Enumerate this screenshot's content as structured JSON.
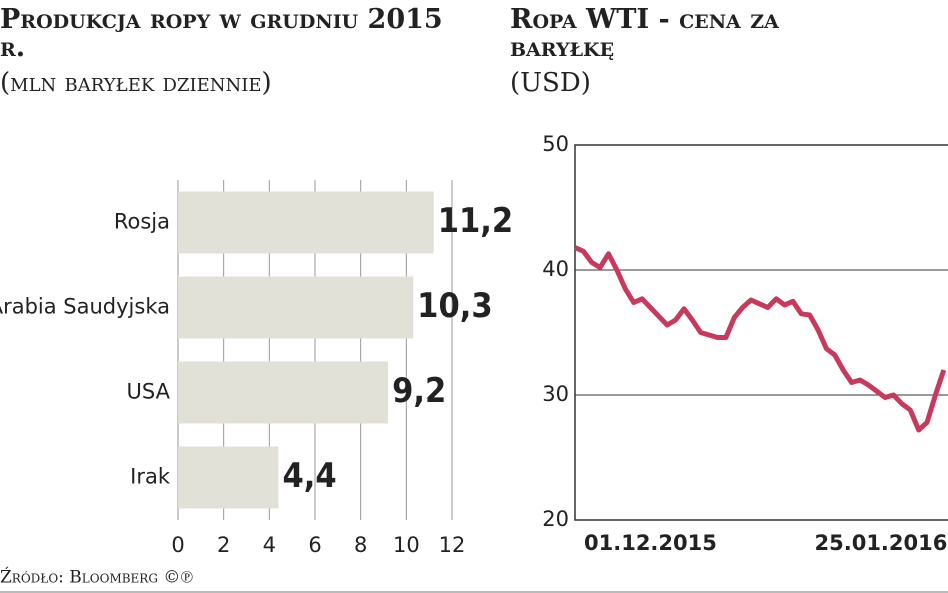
{
  "chart_data": [
    {
      "type": "bar",
      "orientation": "horizontal",
      "title": "Produkcja ropy w grudniu 2015 r.",
      "subtitle": "(mln baryłek dziennie)",
      "categories": [
        "Rosja",
        "Arabia Saudyjska",
        "USA",
        "Irak"
      ],
      "values": [
        11.2,
        10.3,
        9.2,
        4.4
      ],
      "value_labels": [
        "11,2",
        "10,3",
        "9,2",
        "4,4"
      ],
      "color": "#e2e1d8",
      "xlim": [
        0,
        12
      ],
      "xticks": [
        0,
        2,
        4,
        6,
        8,
        10,
        12
      ],
      "grid": true,
      "source": "Źródło: Bloomberg ©℗"
    },
    {
      "type": "line",
      "title": "Ropa WTI - cena za baryłkę",
      "subtitle": "(USD)",
      "x": [
        "2015-11-13",
        "2015-11-15",
        "2015-11-17",
        "2015-11-19",
        "2015-11-21",
        "2015-11-23",
        "2015-11-25",
        "2015-11-27",
        "2015-11-29",
        "2015-12-01",
        "2015-12-03",
        "2015-12-05",
        "2015-12-07",
        "2015-12-09",
        "2015-12-11",
        "2015-12-13",
        "2015-12-15",
        "2015-12-17",
        "2015-12-19",
        "2015-12-21",
        "2015-12-23",
        "2015-12-25",
        "2015-12-27",
        "2015-12-29",
        "2015-12-31",
        "2016-01-02",
        "2016-01-04",
        "2016-01-06",
        "2016-01-08",
        "2016-01-10",
        "2016-01-12",
        "2016-01-14",
        "2016-01-16",
        "2016-01-18",
        "2016-01-20",
        "2016-01-22",
        "2016-01-24",
        "2016-01-26",
        "2016-01-28",
        "2016-01-30",
        "2016-02-01",
        "2016-02-03",
        "2016-02-05",
        "2016-02-07",
        "2016-02-09"
      ],
      "series": [
        {
          "name": "WTI",
          "color": "#c83a5c",
          "values": [
            41.8,
            41.5,
            40.6,
            40.2,
            41.3,
            40,
            38.5,
            37.4,
            37.7,
            37,
            36.3,
            35.6,
            36,
            36.9,
            36,
            35,
            34.8,
            34.6,
            34.6,
            36.2,
            37,
            37.6,
            37.3,
            37,
            37.7,
            37.2,
            37.5,
            36.5,
            36.4,
            35.2,
            33.7,
            33.2,
            32,
            31,
            31.2,
            30.8,
            30.3,
            29.8,
            30,
            29.3,
            28.8,
            27.2,
            27.8,
            30,
            32
          ]
        }
      ],
      "xlim": [
        "2015-11-13",
        "2016-02-10"
      ],
      "xticks": [
        {
          "value": "2015-12-01",
          "label": "01.12.2015"
        },
        {
          "value": "2016-01-25",
          "label": "25.01.2016"
        }
      ],
      "ylim": [
        20,
        50
      ],
      "yticks": [
        20,
        30,
        40,
        50
      ],
      "grid": true
    }
  ]
}
